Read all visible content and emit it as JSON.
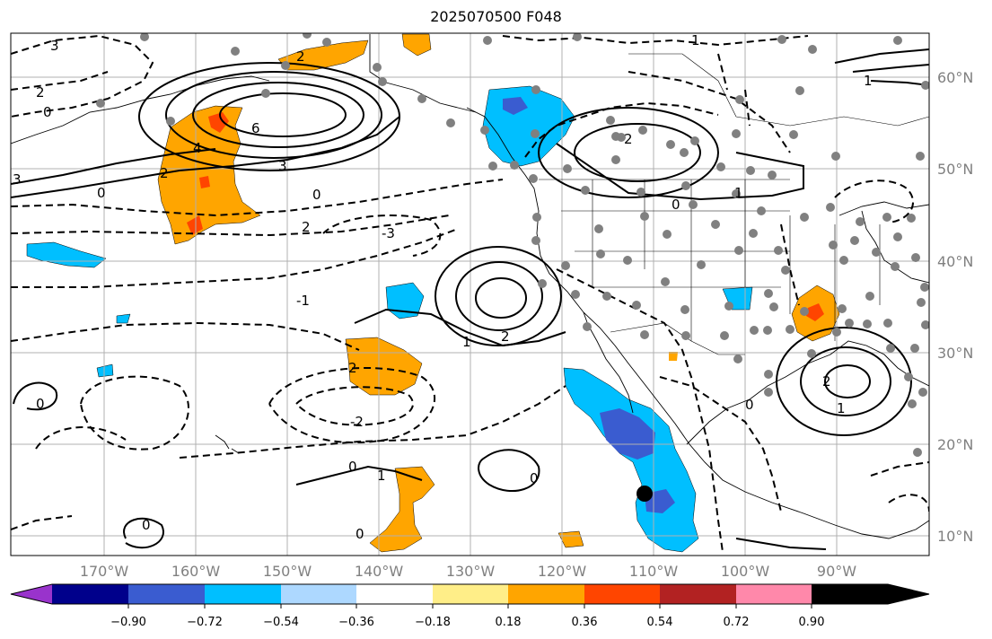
{
  "title": "2025070500 F048",
  "lon_labels": [
    "170°W",
    "160°W",
    "150°W",
    "140°W",
    "130°W",
    "120°W",
    "110°W",
    "100°W",
    "90°W"
  ],
  "lat_labels": [
    "60°N",
    "50°N",
    "40°N",
    "30°N",
    "20°N",
    "10°N"
  ],
  "colorbar": {
    "ticks": [
      "−0.90",
      "−0.72",
      "−0.54",
      "−0.36",
      "−0.18",
      "0.18",
      "0.36",
      "0.54",
      "0.72",
      "0.90"
    ],
    "colors": [
      "#9933cc",
      "#00008b",
      "#3a5cd0",
      "#00bfff",
      "#add8ff",
      "#ffffff",
      "#ffee88",
      "#ffa500",
      "#ff4500",
      "#b22222",
      "#ff88aa"
    ]
  },
  "contour_labels": [
    "3",
    "2",
    "0",
    "6",
    "4",
    "3",
    "0",
    "2",
    "3",
    "2",
    "0",
    "1",
    "2",
    "1",
    "0",
    "1",
    "2",
    "-3",
    "-2",
    "-1",
    "0",
    "1",
    "2",
    "0",
    "0",
    "1",
    "0",
    "0",
    "1",
    "2",
    "0",
    "2"
  ],
  "colors": {
    "frame": "#000000",
    "grid": "#b0b0b0",
    "coast": "#000000",
    "station": "#808080"
  }
}
